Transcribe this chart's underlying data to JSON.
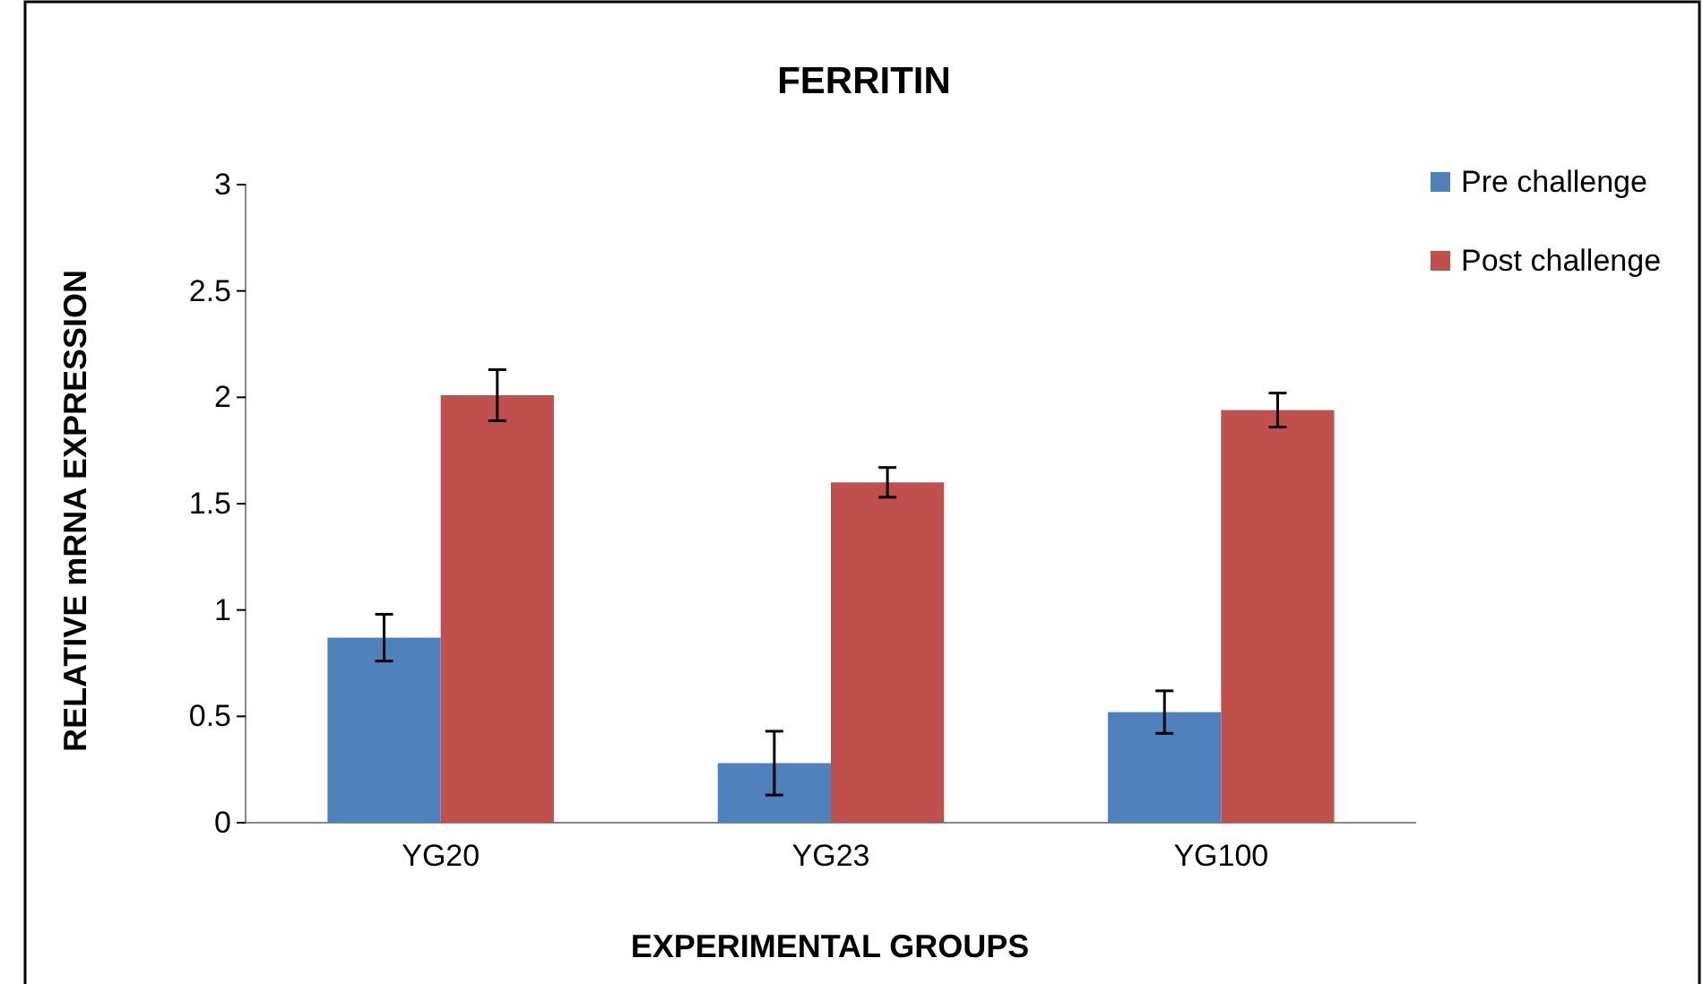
{
  "chart_data": {
    "type": "bar",
    "title": "FERRITIN",
    "xlabel": "EXPERIMENTAL GROUPS",
    "ylabel": "RELATIVE mRNA EXPRESSION",
    "categories": [
      "YG20",
      "YG23",
      "YG100"
    ],
    "series": [
      {
        "name": "Pre challenge",
        "color": "#4f81bd",
        "values": [
          0.87,
          0.28,
          0.52
        ],
        "errors": [
          0.11,
          0.15,
          0.1
        ]
      },
      {
        "name": "Post challenge",
        "color": "#c0504d",
        "values": [
          2.01,
          1.6,
          1.94
        ],
        "errors": [
          0.12,
          0.07,
          0.08
        ]
      }
    ],
    "ylim": [
      0,
      3
    ],
    "yticks": [
      0,
      0.5,
      1,
      1.5,
      2,
      2.5,
      3
    ],
    "grid": false,
    "legend": "top right"
  }
}
